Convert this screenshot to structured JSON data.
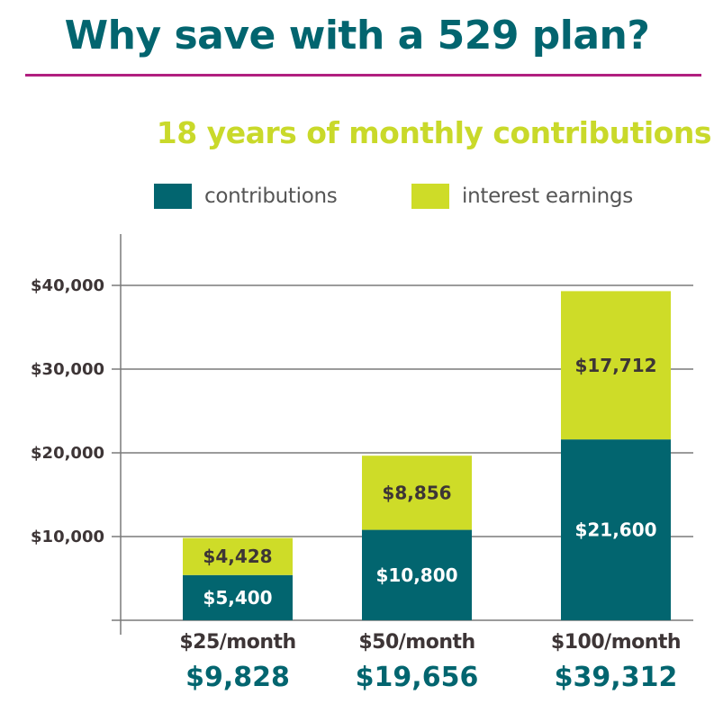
{
  "header": {
    "title": "Why save with a 529 plan?"
  },
  "colors": {
    "title": "#02656f",
    "rule": "#b11f80",
    "contributions": "#02656f",
    "interest": "#cedc28",
    "subtitle": "#c9d92a",
    "axis": "#777777",
    "tick_text": "#3d3536"
  },
  "chart_data": {
    "type": "bar",
    "stacked": true,
    "title": "18 years of monthly contributions",
    "xlabel": "",
    "ylabel": "",
    "categories": [
      "$25/month",
      "$50/month",
      "$100/month"
    ],
    "series": [
      {
        "name": "contributions",
        "values": [
          5400,
          10800,
          21600
        ],
        "labels": [
          "$5,400",
          "$10,800",
          "$21,600"
        ]
      },
      {
        "name": "interest earnings",
        "values": [
          4428,
          8856,
          17712
        ],
        "labels": [
          "$4,428",
          "$8,856",
          "$17,712"
        ]
      }
    ],
    "totals": [
      "$9,828",
      "$19,656",
      "$39,312"
    ],
    "ylim": [
      0,
      40000
    ],
    "yticks": [
      0,
      10000,
      20000,
      30000,
      40000
    ],
    "ytick_labels": [
      "",
      "$10,000",
      "$20,000",
      "$30,000",
      "$40,000"
    ],
    "grid": true,
    "legend_position": "top"
  }
}
